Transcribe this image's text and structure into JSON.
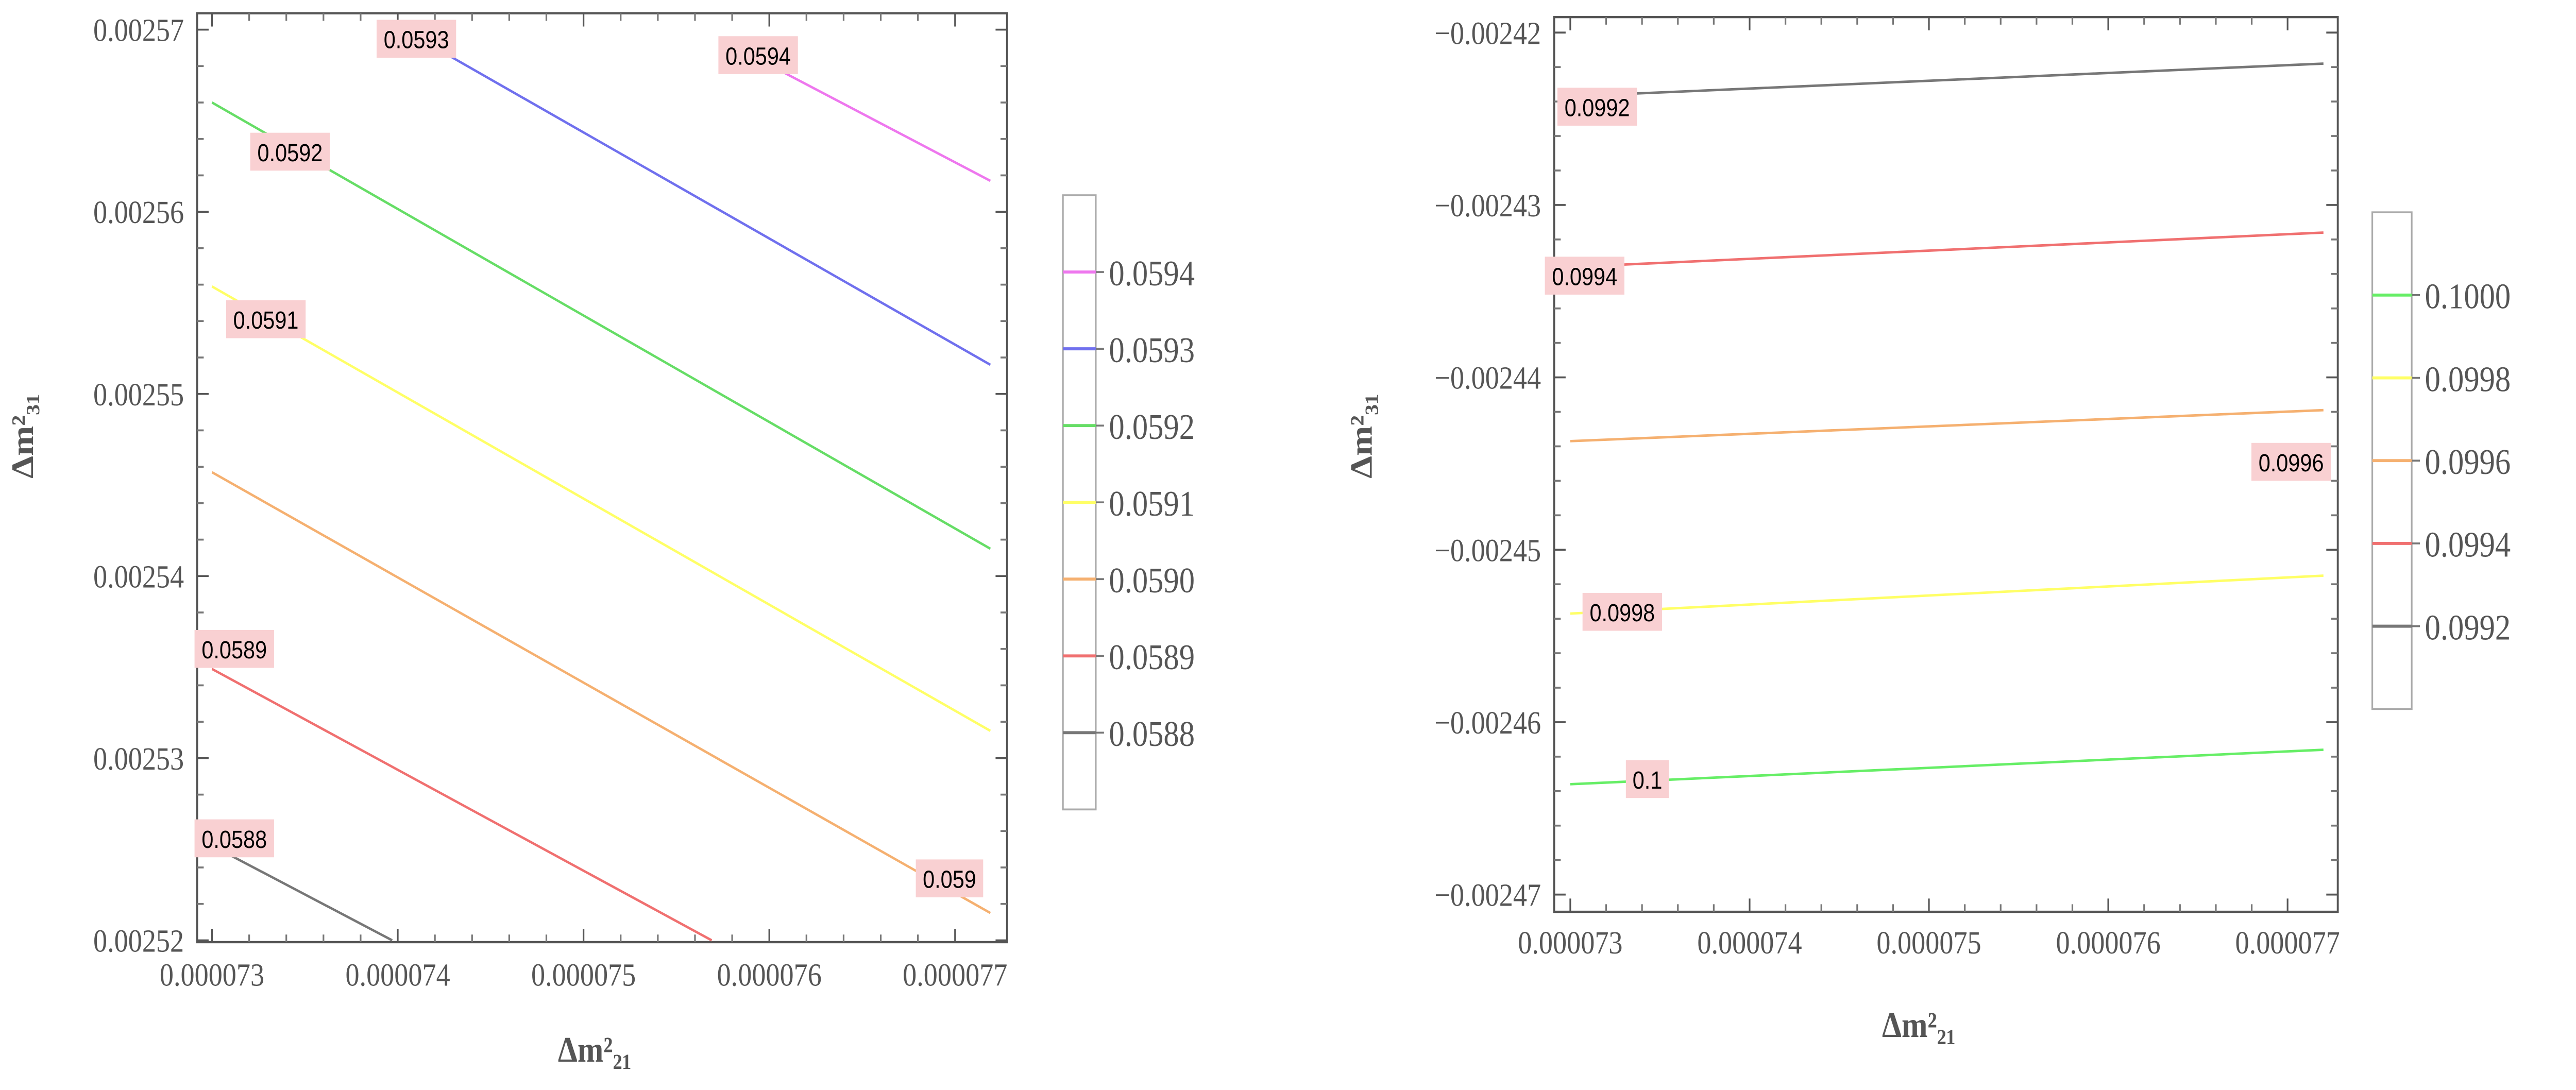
{
  "chart_data": [
    {
      "type": "contour",
      "xlabel": "Δm²₂₁",
      "ylabel": "Δm²₃₁",
      "xlim": [
        7.292e-05,
        7.728e-05
      ],
      "ylim": [
        0.0025199,
        0.0025709
      ],
      "xticks": [
        7.3e-05,
        7.4e-05,
        7.5e-05,
        7.6e-05,
        7.7e-05
      ],
      "xtick_labels": [
        "0.000073",
        "0.000074",
        "0.000075",
        "0.000076",
        "0.000077"
      ],
      "yticks": [
        0.00252,
        0.00253,
        0.00254,
        0.00255,
        0.00256,
        0.00257
      ],
      "ytick_labels": [
        "0.00252",
        "0.00253",
        "0.00254",
        "0.00255",
        "0.00256",
        "0.00257"
      ],
      "legend_placement": "right",
      "legend": [
        "0.0594",
        "0.0593",
        "0.0592",
        "0.0591",
        "0.0590",
        "0.0589",
        "0.0588"
      ],
      "legend_colors": [
        "#ee77ee",
        "#7070ee",
        "#66dd66",
        "#ffff66",
        "#f5b070",
        "#f07070",
        "#777777"
      ],
      "series": [
        {
          "name": "0.0588",
          "color": "#777777",
          "points": [
            [
              7.3e-05,
              0.0025252
            ],
            [
              7.397e-05,
              0.00252
            ]
          ],
          "label": "0.0588",
          "label_at": [
            7.312e-05,
            0.0025256
          ]
        },
        {
          "name": "0.0589",
          "color": "#f07070",
          "points": [
            [
              7.3e-05,
              0.0025349
            ],
            [
              7.569e-05,
              0.00252
            ]
          ],
          "label": "0.0589",
          "label_at": [
            7.312e-05,
            0.002536
          ]
        },
        {
          "name": "0.0590",
          "color": "#f5b070",
          "points": [
            [
              7.3e-05,
              0.0025457
            ],
            [
              7.719e-05,
              0.0025215
            ]
          ],
          "label": "0.059",
          "label_at": [
            7.697e-05,
            0.0025234
          ]
        },
        {
          "name": "0.0591",
          "color": "#ffff66",
          "points": [
            [
              7.3e-05,
              0.0025559
            ],
            [
              7.719e-05,
              0.0025315
            ]
          ],
          "label": "0.0591",
          "label_at": [
            7.329e-05,
            0.0025541
          ]
        },
        {
          "name": "0.0592",
          "color": "#66dd66",
          "points": [
            [
              7.3e-05,
              0.002566
            ],
            [
              7.719e-05,
              0.0025415
            ]
          ],
          "label": "0.0592",
          "label_at": [
            7.342e-05,
            0.0025633
          ]
        },
        {
          "name": "0.0593",
          "color": "#7070ee",
          "points": [
            [
              7.41e-05,
              0.0025696
            ],
            [
              7.719e-05,
              0.0025516
            ]
          ],
          "label": "0.0593",
          "label_at": [
            7.41e-05,
            0.0025695
          ]
        },
        {
          "name": "0.0594",
          "color": "#ee77ee",
          "points": [
            [
              7.59e-05,
              0.0025686
            ],
            [
              7.719e-05,
              0.0025617
            ]
          ],
          "label": "0.0594",
          "label_at": [
            7.594e-05,
            0.0025686
          ]
        }
      ]
    },
    {
      "type": "contour",
      "xlabel": "Δm²₂₁",
      "ylabel": "Δm²₃₁",
      "xlim": [
        7.291e-05,
        7.728e-05
      ],
      "ylim": [
        -0.002471,
        -0.0024191
      ],
      "xticks": [
        7.3e-05,
        7.4e-05,
        7.5e-05,
        7.6e-05,
        7.7e-05
      ],
      "xtick_labels": [
        "0.000073",
        "0.000074",
        "0.000075",
        "0.000076",
        "0.000077"
      ],
      "yticks": [
        -0.00247,
        -0.00246,
        -0.00245,
        -0.00244,
        -0.00243,
        -0.00242
      ],
      "ytick_labels": [
        "−0.00247",
        "−0.00246",
        "−0.00245",
        "−0.00244",
        "−0.00243",
        "−0.00242"
      ],
      "legend_placement": "right",
      "legend": [
        "0.1000",
        "0.0998",
        "0.0996",
        "0.0994",
        "0.0992"
      ],
      "legend_colors": [
        "#66ee66",
        "#ffff66",
        "#f5b070",
        "#f07070",
        "#777777"
      ],
      "series": [
        {
          "name": "0.0992",
          "color": "#777777",
          "points": [
            [
              7.3e-05,
              -0.0024237
            ],
            [
              7.72e-05,
              -0.0024218
            ]
          ],
          "label": "0.0992",
          "label_at": [
            7.315e-05,
            -0.0024243
          ]
        },
        {
          "name": "0.0994",
          "color": "#f07070",
          "points": [
            [
              7.3e-05,
              -0.0024336
            ],
            [
              7.72e-05,
              -0.0024316
            ]
          ],
          "label": "0.0994",
          "label_at": [
            7.308e-05,
            -0.0024341
          ]
        },
        {
          "name": "0.0996",
          "color": "#f5b070",
          "points": [
            [
              7.3e-05,
              -0.0024437
            ],
            [
              7.72e-05,
              -0.0024419
            ]
          ],
          "label": "0.0996",
          "label_at": [
            7.702e-05,
            -0.0024449
          ]
        },
        {
          "name": "0.0998",
          "color": "#ffff66",
          "points": [
            [
              7.3e-05,
              -0.0024537
            ],
            [
              7.72e-05,
              -0.0024515
            ]
          ],
          "label": "0.0998",
          "label_at": [
            7.329e-05,
            -0.0024536
          ]
        },
        {
          "name": "0.1",
          "color": "#66ee66",
          "points": [
            [
              7.3e-05,
              -0.0024636
            ],
            [
              7.72e-05,
              -0.0024616
            ]
          ],
          "label": "0.1",
          "label_at": [
            7.343e-05,
            -0.0024633
          ]
        }
      ]
    }
  ]
}
